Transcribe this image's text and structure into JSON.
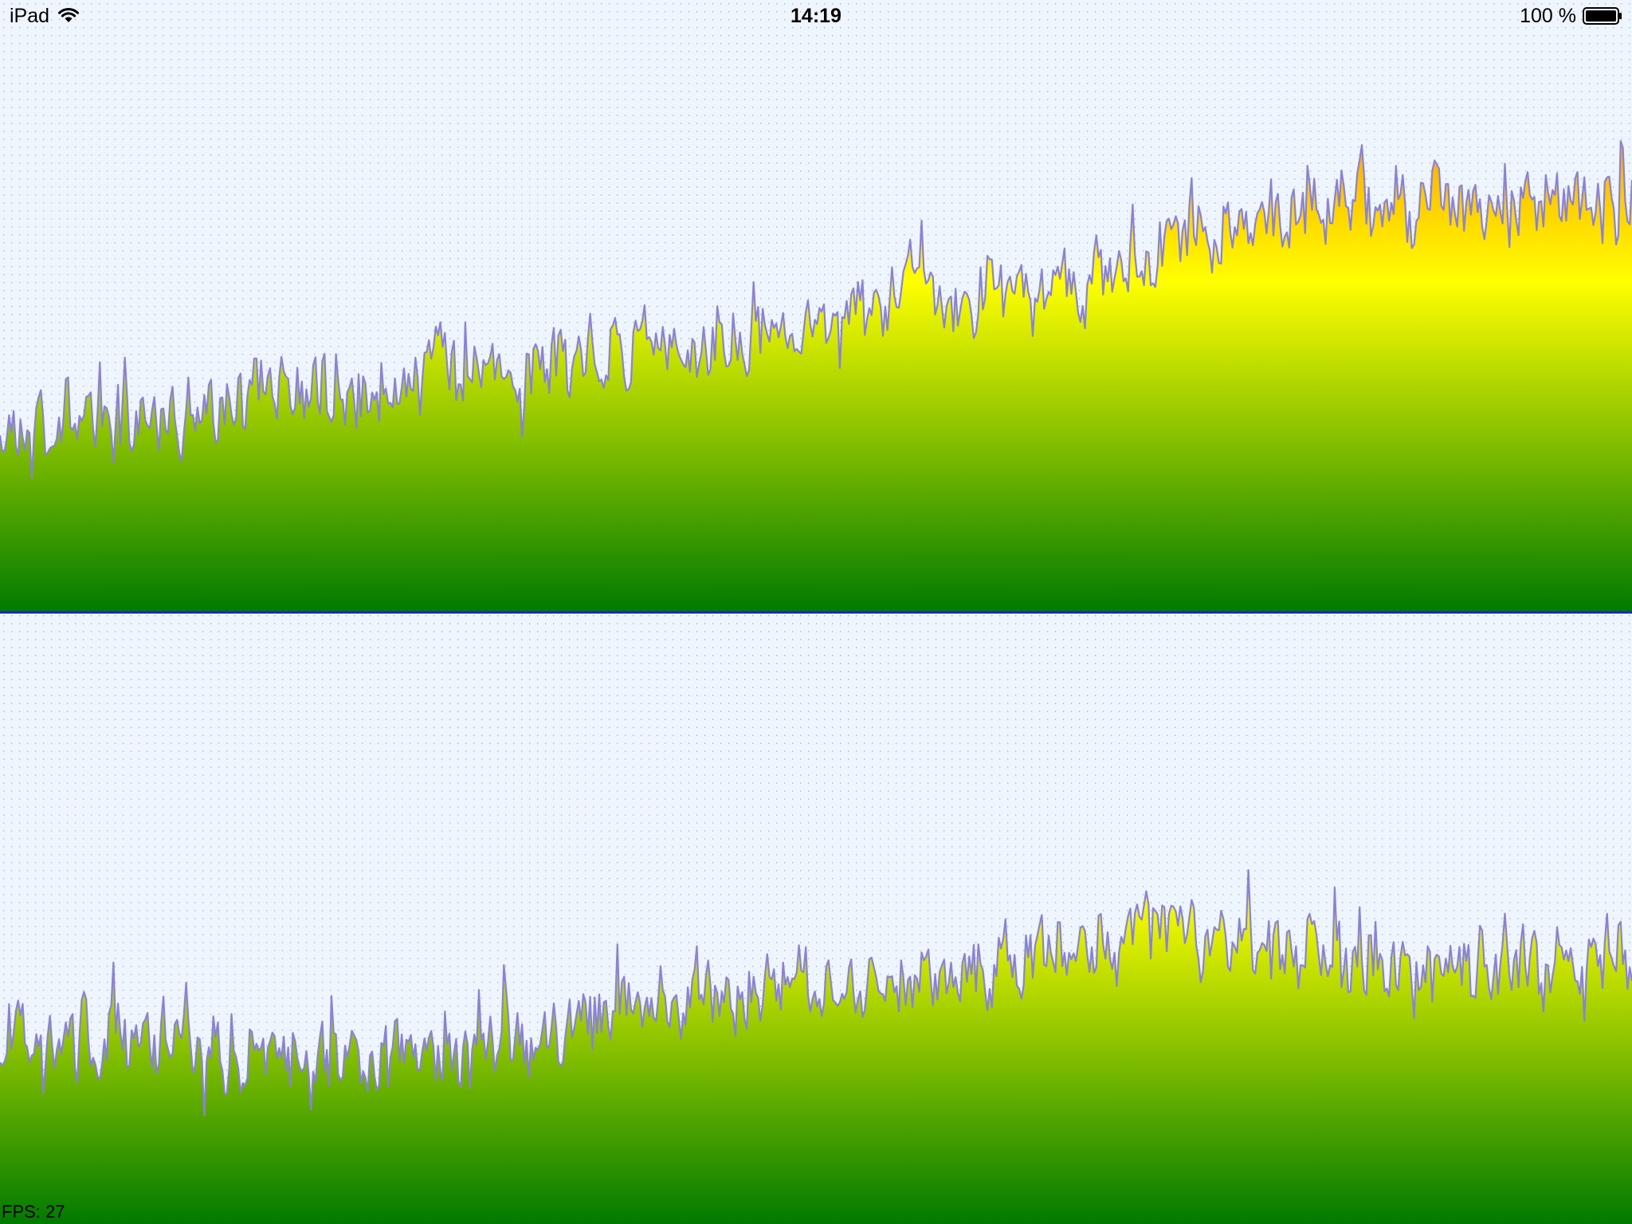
{
  "status_bar": {
    "device": "iPad",
    "time": "14:19",
    "battery": "100 %"
  },
  "fps_label": "FPS: 27",
  "colors": {
    "background": "#eef5fc",
    "grid_dots": "#8fb0e0",
    "line": "#8a82d8",
    "gradient_top": "#ff8a00",
    "gradient_mid": "#ffff00",
    "gradient_bottom": "#007a00",
    "divider": "#1a2fb8"
  },
  "chart_data": [
    {
      "type": "area",
      "grid": true,
      "series": [
        {
          "points": 720,
          "seed": 7,
          "trend": [
            [
              0,
              0.3
            ],
            [
              0.12,
              0.33
            ],
            [
              0.28,
              0.4
            ],
            [
              0.45,
              0.44
            ],
            [
              0.55,
              0.52
            ],
            [
              0.68,
              0.54
            ],
            [
              0.78,
              0.67
            ],
            [
              1.0,
              0.66
            ]
          ]
        }
      ]
    },
    {
      "type": "area",
      "grid": true,
      "series": [
        {
          "points": 720,
          "seed": 19,
          "trend": [
            [
              0,
              0.31
            ],
            [
              0.15,
              0.29
            ],
            [
              0.26,
              0.26
            ],
            [
              0.33,
              0.29
            ],
            [
              0.4,
              0.37
            ],
            [
              0.55,
              0.39
            ],
            [
              0.72,
              0.48
            ],
            [
              0.85,
              0.41
            ],
            [
              1.0,
              0.42
            ]
          ]
        }
      ]
    }
  ]
}
